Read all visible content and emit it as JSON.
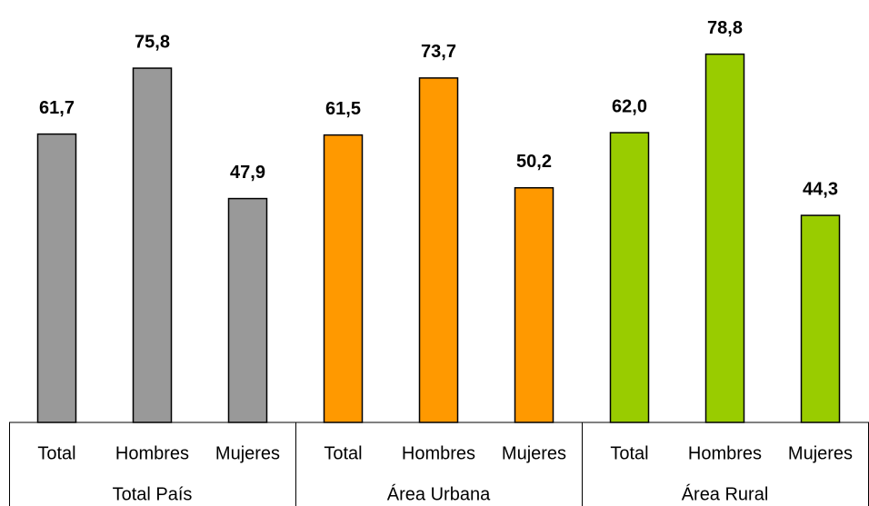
{
  "chart_data": {
    "type": "bar",
    "groups": [
      {
        "name": "Total País",
        "color": "#999999",
        "categories": [
          "Total",
          "Hombres",
          "Mujeres"
        ],
        "values": [
          61.7,
          75.8,
          47.9
        ],
        "value_labels": [
          "61,7",
          "75,8",
          "47,9"
        ]
      },
      {
        "name": "Área Urbana",
        "color": "#ff9900",
        "categories": [
          "Total",
          "Hombres",
          "Mujeres"
        ],
        "values": [
          61.5,
          73.7,
          50.2
        ],
        "value_labels": [
          "61,5",
          "73,7",
          "50,2"
        ]
      },
      {
        "name": "Área Rural",
        "color": "#99cc00",
        "categories": [
          "Total",
          "Hombres",
          "Mujeres"
        ],
        "values": [
          62.0,
          78.8,
          44.3
        ],
        "value_labels": [
          "62,0",
          "78,8",
          "44,3"
        ]
      }
    ],
    "ylim": [
      0,
      90
    ]
  }
}
